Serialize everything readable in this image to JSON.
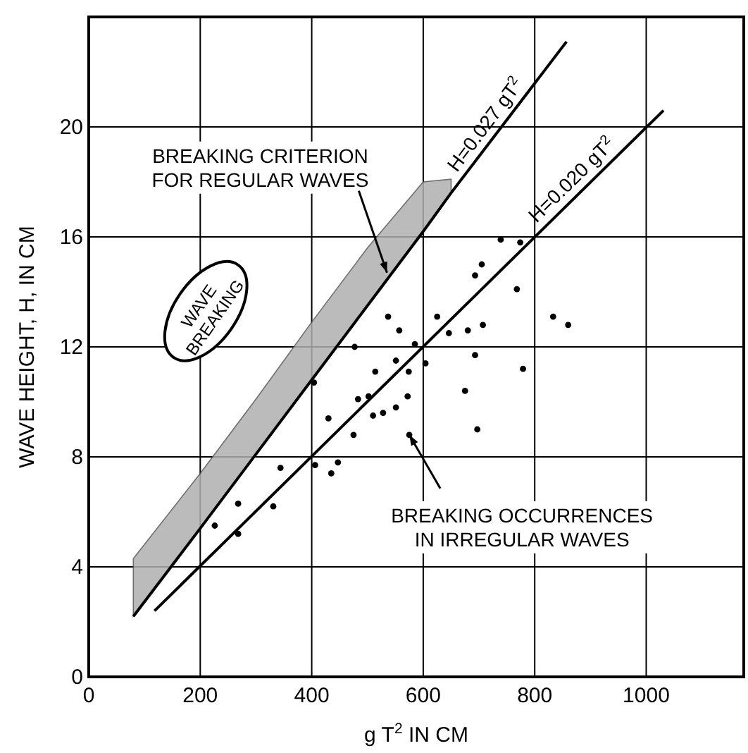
{
  "chart_data": {
    "type": "scatter",
    "xlabel": "g T$^{2}$ IN CM",
    "ylabel": "WAVE HEIGHT, H, IN CM",
    "xlim": [
      0,
      1175
    ],
    "ylim": [
      0,
      24
    ],
    "xticks": [
      0,
      200,
      400,
      600,
      800,
      1000
    ],
    "yticks": [
      0,
      4,
      8,
      12,
      16,
      20
    ],
    "grid": true,
    "legend": false,
    "series": [
      {
        "type": "line",
        "name": "H=0.027 gT$^{2}$",
        "color": "#000000",
        "line_style": "solid",
        "marker": "none",
        "x": [
          80,
          200,
          300,
          400,
          500,
          600,
          650,
          857
        ],
        "values": [
          2.2,
          5.4,
          8.1,
          10.8,
          13.5,
          16.2,
          17.6,
          23.1
        ],
        "lower": [
          2.2,
          5.4,
          8.1,
          10.8,
          13.5,
          16.2,
          17.6,
          null
        ],
        "upper": [
          4.3,
          7.4,
          10.1,
          12.9,
          15.6,
          18.0,
          18.1,
          null
        ]
      },
      {
        "type": "line",
        "name": "H=0.020 gT$^{2}$",
        "color": "#000000",
        "line_style": "solid",
        "marker": "none",
        "x": [
          118,
          1031
        ],
        "values": [
          2.4,
          20.6
        ]
      },
      {
        "color": "#000000",
        "marker": "circle",
        "x": [
          226,
          268,
          268,
          331,
          344,
          404,
          406,
          435,
          447,
          430,
          475,
          483,
          502,
          514,
          510,
          528,
          551,
          572,
          551,
          574,
          585,
          604,
          575,
          477,
          675,
          697,
          693,
          779,
          739,
          774,
          705,
          693,
          768,
          833,
          860,
          537,
          557,
          625,
          680,
          707,
          646
        ],
        "values": [
          5.5,
          6.3,
          5.2,
          6.2,
          7.6,
          10.7,
          7.7,
          7.4,
          7.8,
          9.4,
          8.8,
          10.1,
          10.2,
          11.1,
          9.5,
          9.6,
          9.8,
          10.2,
          11.5,
          11.1,
          12.1,
          11.4,
          8.8,
          12.0,
          10.4,
          9.0,
          11.7,
          11.2,
          15.9,
          15.8,
          15.0,
          14.6,
          14.1,
          13.1,
          12.8,
          13.1,
          12.6,
          13.1,
          12.6,
          12.8,
          12.5
        ]
      }
    ],
    "annotations": [
      {
        "text": "BREAKING CRITERION FOR REGULAR WAVES",
        "x": 535,
        "y": 14.7
      },
      "WAVE BREAKING",
      {
        "text": "BREAKING OCCURRENCES IN IRREGULAR WAVES",
        "x": 575,
        "y": 8.8
      }
    ]
  }
}
